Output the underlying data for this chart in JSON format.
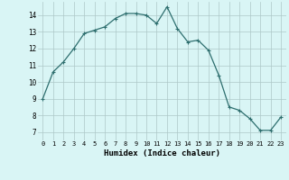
{
  "x": [
    0,
    1,
    2,
    3,
    4,
    5,
    6,
    7,
    8,
    9,
    10,
    11,
    12,
    13,
    14,
    15,
    16,
    17,
    18,
    19,
    20,
    21,
    22,
    23
  ],
  "y": [
    9.0,
    10.6,
    11.2,
    12.0,
    12.9,
    13.1,
    13.3,
    13.8,
    14.1,
    14.1,
    14.0,
    13.5,
    14.5,
    13.2,
    12.4,
    12.5,
    11.9,
    10.4,
    8.5,
    8.3,
    7.8,
    7.1,
    7.1,
    7.9
  ],
  "line_color": "#2d6e6e",
  "marker": "+",
  "marker_size": 3,
  "marker_lw": 0.8,
  "line_width": 0.9,
  "bg_color": "#d9f5f5",
  "grid_color": "#adc8c8",
  "grid_lw": 0.5,
  "xlabel": "Humidex (Indice chaleur)",
  "xlim": [
    -0.5,
    23.5
  ],
  "ylim": [
    6.5,
    14.8
  ],
  "yticks": [
    7,
    8,
    9,
    10,
    11,
    12,
    13,
    14
  ],
  "xticks": [
    0,
    1,
    2,
    3,
    4,
    5,
    6,
    7,
    8,
    9,
    10,
    11,
    12,
    13,
    14,
    15,
    16,
    17,
    18,
    19,
    20,
    21,
    22,
    23
  ],
  "xlabel_fontsize": 6.5,
  "xtick_fontsize": 5.0,
  "ytick_fontsize": 5.5
}
